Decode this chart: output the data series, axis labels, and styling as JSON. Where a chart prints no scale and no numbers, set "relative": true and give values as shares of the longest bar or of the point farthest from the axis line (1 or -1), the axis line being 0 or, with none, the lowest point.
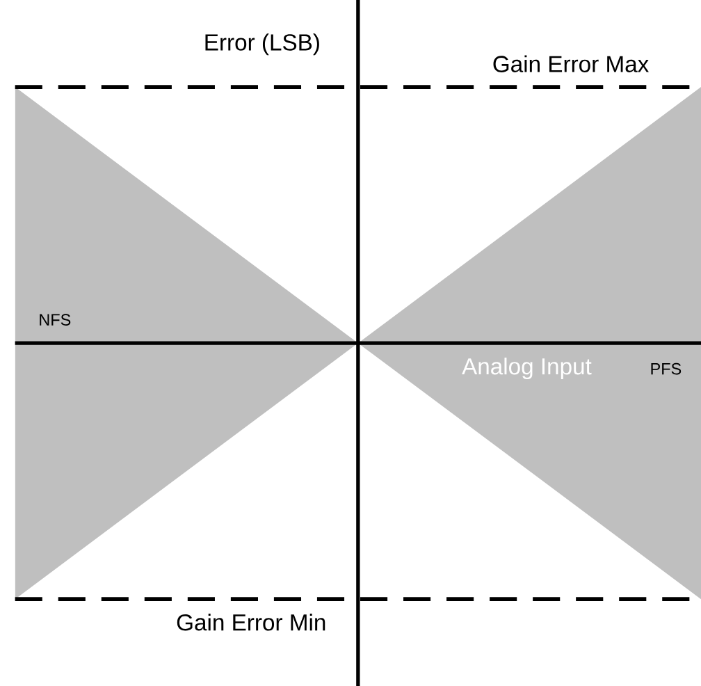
{
  "chart_data": {
    "type": "area",
    "relative": true,
    "xlabel": "Analog Input",
    "ylabel": "Error (LSB)",
    "categories": [
      "NFS",
      null,
      "PFS"
    ],
    "series": [
      {
        "color": "#bfbfbf",
        "values": [
          1,
          0,
          1
        ]
      },
      {
        "color": "#bfbfbf",
        "values": [
          -1,
          0,
          -1
        ]
      }
    ],
    "ref_lines": [
      {
        "axis": "y",
        "value": 1,
        "label": "Gain Error Max",
        "color": "#000000",
        "line_style": "dashed"
      },
      {
        "axis": "y",
        "value": -1,
        "label": "Gain Error Min",
        "color": "#000000",
        "line_style": "dashed"
      }
    ],
    "tick_labels": "x"
  }
}
